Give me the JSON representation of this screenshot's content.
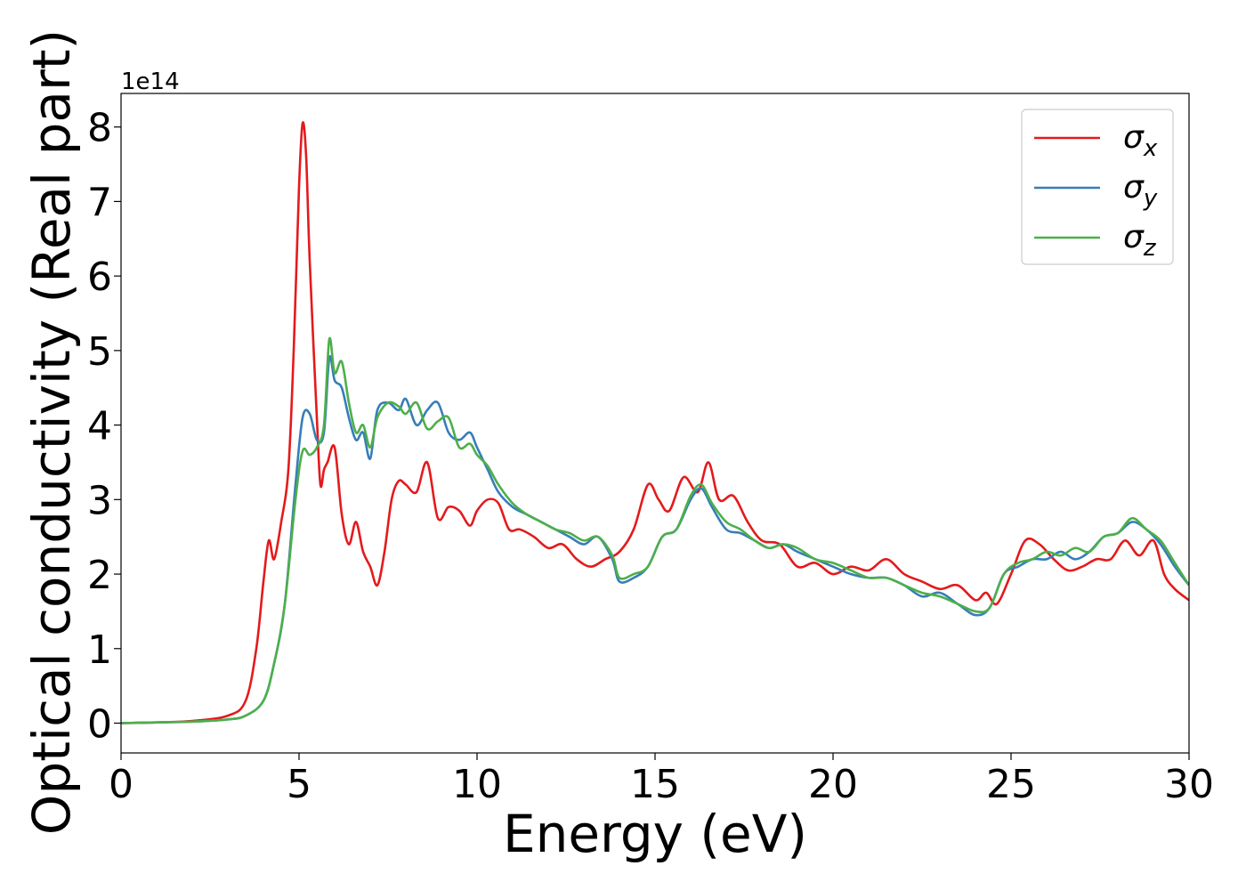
{
  "chart_data": {
    "type": "line",
    "xlabel": "Energy (eV)",
    "ylabel": "Optical conductivity (Real part)",
    "y_offset_label": "1e14",
    "xlim": [
      0,
      30
    ],
    "ylim": [
      -0.4,
      8.45
    ],
    "xticks": [
      0,
      5,
      10,
      15,
      20,
      25,
      30
    ],
    "yticks": [
      0,
      1,
      2,
      3,
      4,
      5,
      6,
      7,
      8
    ],
    "grid": false,
    "legend_position": "top-right",
    "series": [
      {
        "name": "σ",
        "subscript": "x",
        "color": "#e41a1c",
        "x": [
          0,
          1,
          2,
          3,
          3.5,
          3.8,
          4.0,
          4.15,
          4.3,
          4.5,
          4.7,
          4.85,
          5.0,
          5.1,
          5.2,
          5.3,
          5.5,
          5.6,
          5.7,
          5.8,
          6.0,
          6.2,
          6.4,
          6.6,
          6.8,
          7.0,
          7.2,
          7.4,
          7.6,
          7.8,
          8.0,
          8.3,
          8.6,
          8.9,
          9.2,
          9.5,
          9.8,
          10.0,
          10.3,
          10.6,
          10.9,
          11.2,
          11.6,
          12.0,
          12.4,
          12.8,
          13.2,
          13.6,
          14.0,
          14.4,
          14.8,
          15.1,
          15.4,
          15.8,
          16.2,
          16.5,
          16.8,
          17.2,
          17.6,
          18.0,
          18.5,
          19.0,
          19.5,
          20.0,
          20.5,
          21.0,
          21.5,
          22.0,
          22.5,
          23.0,
          23.5,
          24.0,
          24.3,
          24.6,
          25.0,
          25.4,
          25.8,
          26.2,
          26.6,
          27.0,
          27.4,
          27.8,
          28.2,
          28.6,
          29.0,
          29.3,
          29.6,
          30.0
        ],
        "y": [
          0,
          0.01,
          0.03,
          0.1,
          0.3,
          1.0,
          1.9,
          2.45,
          2.2,
          2.7,
          3.4,
          5.0,
          7.2,
          8.05,
          7.6,
          6.2,
          4.1,
          3.2,
          3.4,
          3.5,
          3.7,
          2.8,
          2.4,
          2.7,
          2.3,
          2.1,
          1.85,
          2.3,
          3.0,
          3.25,
          3.2,
          3.1,
          3.5,
          2.75,
          2.9,
          2.85,
          2.65,
          2.85,
          3.0,
          2.95,
          2.6,
          2.6,
          2.5,
          2.35,
          2.4,
          2.2,
          2.1,
          2.2,
          2.3,
          2.6,
          3.2,
          3.0,
          2.85,
          3.3,
          3.1,
          3.5,
          3.0,
          3.05,
          2.7,
          2.45,
          2.4,
          2.1,
          2.15,
          2.0,
          2.1,
          2.05,
          2.2,
          2.0,
          1.9,
          1.8,
          1.85,
          1.65,
          1.75,
          1.6,
          2.0,
          2.45,
          2.4,
          2.2,
          2.05,
          2.1,
          2.2,
          2.2,
          2.45,
          2.25,
          2.45,
          2.0,
          1.8,
          1.65
        ]
      },
      {
        "name": "σ",
        "subscript": "y",
        "color": "#377eb8",
        "x": [
          0,
          1,
          2,
          3,
          3.5,
          4.0,
          4.3,
          4.6,
          4.9,
          5.1,
          5.3,
          5.5,
          5.7,
          5.85,
          6.0,
          6.2,
          6.4,
          6.6,
          6.8,
          7.0,
          7.2,
          7.5,
          7.8,
          8.0,
          8.3,
          8.6,
          8.9,
          9.2,
          9.5,
          9.8,
          10.0,
          10.3,
          10.6,
          11.0,
          11.4,
          11.8,
          12.2,
          12.6,
          13.0,
          13.4,
          13.8,
          14.0,
          14.4,
          14.8,
          15.2,
          15.6,
          16.0,
          16.3,
          16.6,
          17.0,
          17.4,
          17.8,
          18.2,
          18.6,
          19.0,
          19.5,
          20.0,
          20.5,
          21.0,
          21.5,
          22.0,
          22.5,
          23.0,
          23.5,
          24.0,
          24.4,
          24.8,
          25.2,
          25.6,
          26.0,
          26.4,
          26.8,
          27.2,
          27.6,
          28.0,
          28.4,
          28.8,
          29.2,
          29.6,
          30.0
        ],
        "y": [
          0,
          0.01,
          0.02,
          0.05,
          0.1,
          0.3,
          0.8,
          1.6,
          3.2,
          4.1,
          4.15,
          3.8,
          3.9,
          4.9,
          4.6,
          4.5,
          4.1,
          3.8,
          3.9,
          3.55,
          4.2,
          4.3,
          4.2,
          4.35,
          4.0,
          4.2,
          4.3,
          3.9,
          3.8,
          3.9,
          3.7,
          3.4,
          3.1,
          2.9,
          2.8,
          2.7,
          2.6,
          2.5,
          2.4,
          2.5,
          2.2,
          1.9,
          1.95,
          2.1,
          2.5,
          2.6,
          3.0,
          3.15,
          2.9,
          2.6,
          2.55,
          2.45,
          2.35,
          2.4,
          2.3,
          2.2,
          2.1,
          2.0,
          1.95,
          1.95,
          1.85,
          1.7,
          1.75,
          1.6,
          1.45,
          1.55,
          2.0,
          2.1,
          2.2,
          2.2,
          2.3,
          2.2,
          2.3,
          2.5,
          2.55,
          2.7,
          2.6,
          2.4,
          2.1,
          1.85
        ]
      },
      {
        "name": "σ",
        "subscript": "z",
        "color": "#4daf4a",
        "x": [
          0,
          1,
          2,
          3,
          3.5,
          4.0,
          4.3,
          4.6,
          4.9,
          5.1,
          5.3,
          5.5,
          5.7,
          5.85,
          6.0,
          6.2,
          6.4,
          6.6,
          6.8,
          7.0,
          7.2,
          7.5,
          7.8,
          8.0,
          8.3,
          8.6,
          8.9,
          9.2,
          9.5,
          9.8,
          10.0,
          10.3,
          10.6,
          11.0,
          11.4,
          11.8,
          12.2,
          12.6,
          13.0,
          13.4,
          13.8,
          14.0,
          14.4,
          14.8,
          15.2,
          15.6,
          16.0,
          16.3,
          16.6,
          17.0,
          17.4,
          17.8,
          18.2,
          18.6,
          19.0,
          19.5,
          20.0,
          20.5,
          21.0,
          21.5,
          22.0,
          22.5,
          23.0,
          23.5,
          24.0,
          24.4,
          24.8,
          25.2,
          25.6,
          26.0,
          26.4,
          26.8,
          27.2,
          27.6,
          28.0,
          28.4,
          28.8,
          29.2,
          29.6,
          30.0
        ],
        "y": [
          0,
          0.01,
          0.02,
          0.05,
          0.1,
          0.3,
          0.8,
          1.6,
          3.0,
          3.65,
          3.6,
          3.7,
          4.0,
          5.15,
          4.7,
          4.85,
          4.3,
          3.9,
          4.0,
          3.7,
          4.1,
          4.3,
          4.25,
          4.15,
          4.3,
          3.95,
          4.05,
          4.1,
          3.7,
          3.75,
          3.6,
          3.45,
          3.2,
          2.95,
          2.8,
          2.7,
          2.6,
          2.55,
          2.45,
          2.5,
          2.25,
          1.95,
          2.0,
          2.1,
          2.5,
          2.6,
          3.05,
          3.2,
          2.95,
          2.7,
          2.6,
          2.45,
          2.35,
          2.4,
          2.35,
          2.2,
          2.15,
          2.05,
          1.95,
          1.95,
          1.85,
          1.75,
          1.7,
          1.6,
          1.5,
          1.55,
          2.0,
          2.15,
          2.2,
          2.3,
          2.25,
          2.35,
          2.3,
          2.5,
          2.55,
          2.75,
          2.6,
          2.45,
          2.15,
          1.85
        ]
      }
    ]
  }
}
